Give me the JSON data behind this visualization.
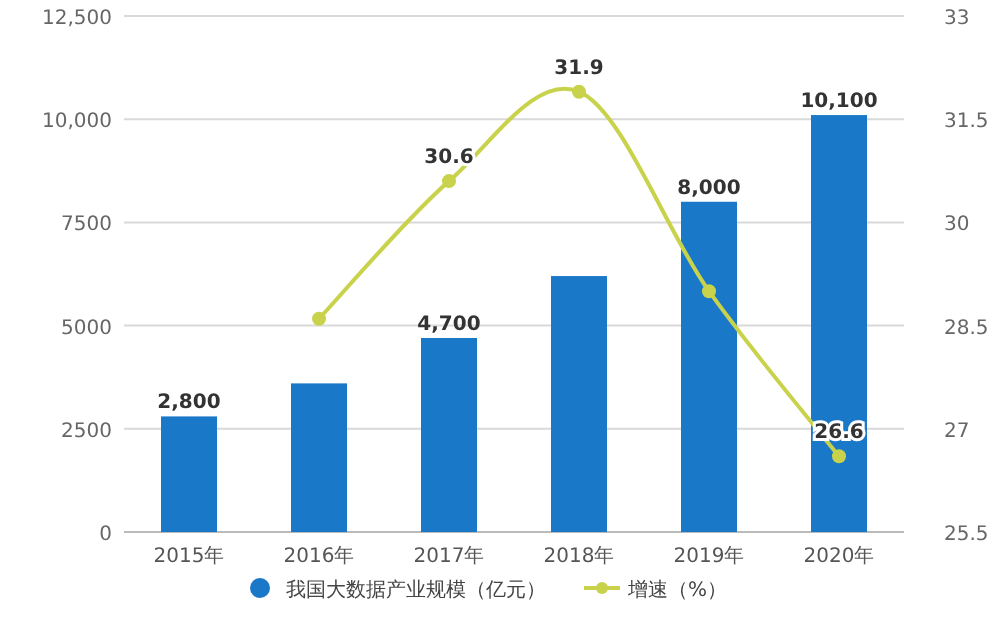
{
  "chart_data": {
    "type": "bar",
    "categories": [
      "2015年",
      "2016年",
      "2017年",
      "2018年",
      "2019年",
      "2020年"
    ],
    "series": [
      {
        "name": "我国大数据产业规模（亿元）",
        "color": "#1a78c8",
        "values": [
          2800,
          3600,
          4700,
          6200,
          8000,
          10100
        ],
        "value_labels": [
          "2,800",
          null,
          "4,700",
          null,
          "8,000",
          "10,100"
        ]
      },
      {
        "name": "增速（%）",
        "type": "line",
        "axis": "y2",
        "color": "#c8d24a",
        "marker": "circle",
        "values": [
          null,
          28.6,
          30.6,
          31.9,
          29.0,
          26.6
        ],
        "value_labels": [
          null,
          null,
          "30.6",
          "31.9",
          null,
          "26.6"
        ]
      }
    ],
    "ylim": [
      0,
      12500
    ],
    "yticks": [
      0,
      {
        "value": 2500,
        "label": "2500"
      },
      {
        "value": 5000,
        "label": "5000"
      },
      {
        "value": 7500,
        "label": "7500"
      },
      {
        "value": 10000,
        "label": "10,000"
      },
      {
        "value": 12500,
        "label": "12,500"
      }
    ],
    "y2lim": [
      25.5,
      33
    ],
    "y2ticks": [
      25.5,
      27,
      28.5,
      30,
      31.5,
      33
    ],
    "grid": "y",
    "legend": "bottom"
  }
}
